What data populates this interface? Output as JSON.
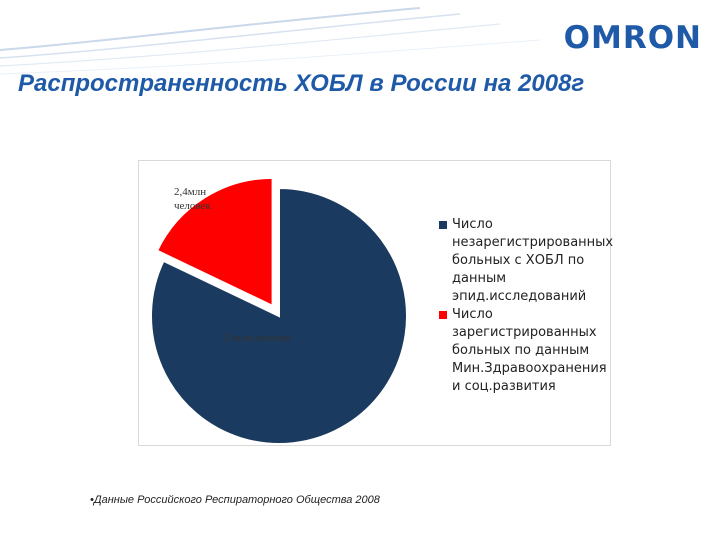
{
  "header": {
    "logo_text": "OMRON",
    "title": "Распространенность  ХОБЛ в России  на 2008г"
  },
  "colors": {
    "brand": "#1f5aa8",
    "series_unregistered": "#1b3a5f",
    "series_registered": "#ff0000"
  },
  "chart_data": {
    "type": "pie",
    "title": "",
    "categories": [
      "Число незарегистрированных больных с ХОБЛ по данным эпид.исследований",
      "Число зарегистрированных больных по данным Мин.Здравоохранения и соц.развития"
    ],
    "values": [
      11,
      2.4
    ],
    "units": "млн человек",
    "data_labels": [
      "11млн.человек",
      "2,4млн человек"
    ],
    "legend_position": "right",
    "exploded_slice": 1
  },
  "footnote": "•Данные  Российского Респираторного Общества 2008"
}
